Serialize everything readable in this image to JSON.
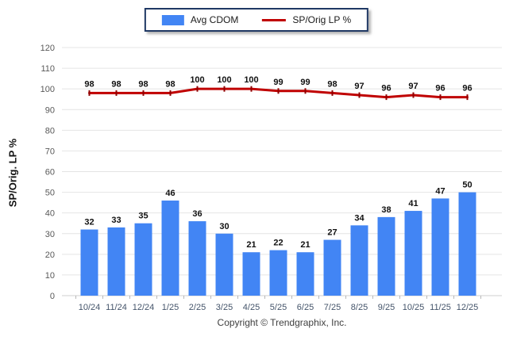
{
  "chart": {
    "legend": {
      "items": [
        {
          "label": "Avg CDOM",
          "swatch": "bar",
          "color": "#4285F4"
        },
        {
          "label": "SP/Orig LP %",
          "swatch": "line",
          "color": "#C00000"
        }
      ]
    },
    "footer": "Copyright © Trendgraphix, Inc."
  },
  "chart_data": {
    "type": "combo",
    "categories": [
      "10/24",
      "11/24",
      "12/24",
      "1/25",
      "2/25",
      "3/25",
      "4/25",
      "5/25",
      "6/25",
      "7/25",
      "8/25",
      "9/25",
      "10/25",
      "11/25",
      "12/25"
    ],
    "series": [
      {
        "name": "Avg CDOM",
        "type": "bar",
        "color": "#4285F4",
        "values": [
          32,
          33,
          35,
          46,
          36,
          30,
          21,
          22,
          21,
          27,
          34,
          38,
          41,
          47,
          50
        ]
      },
      {
        "name": "SP/Orig LP %",
        "type": "line",
        "color": "#C00000",
        "marker_color": "#8F0000",
        "values": [
          98,
          98,
          98,
          98,
          100,
          100,
          100,
          99,
          99,
          98,
          97,
          96,
          97,
          96,
          96
        ]
      }
    ],
    "title": "",
    "xlabel": "",
    "ylabel": "SP/Orig. LP %",
    "ylim": [
      0,
      120
    ],
    "ytick_step": 10,
    "grid": true,
    "grid_color": "#E4E4E4",
    "baseline_color": "#CFCFCF",
    "tick_color": "#B8B8B8",
    "x_tick_label_color": "#44546A",
    "y_tick_label_color": "#595959",
    "data_label_color": "#111111",
    "legend_position": "top-center",
    "data_labels": true
  }
}
